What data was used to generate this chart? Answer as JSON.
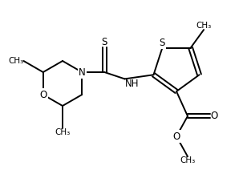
{
  "background_color": "#ffffff",
  "line_color": "#000000",
  "line_width": 1.4,
  "font_size": 8.5,
  "figsize": [
    3.03,
    2.12
  ],
  "dpi": 100,
  "xlim": [
    0,
    303
  ],
  "ylim": [
    0,
    212
  ]
}
